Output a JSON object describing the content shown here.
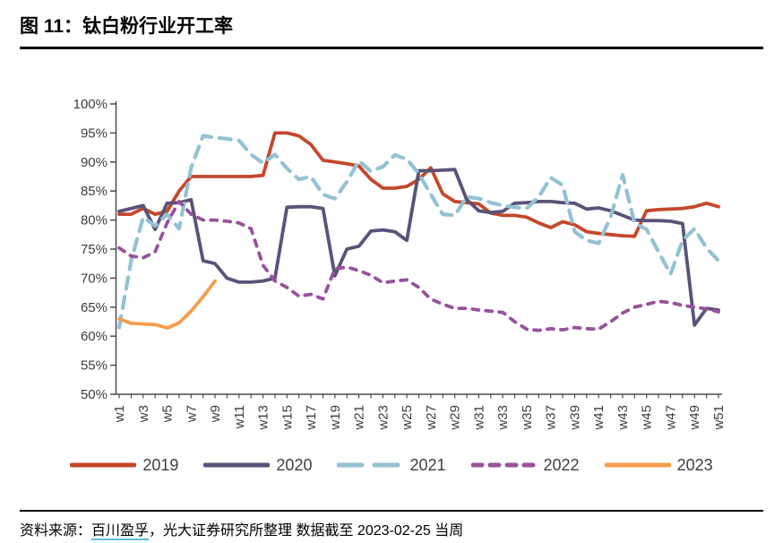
{
  "title": "图 11：钛白粉行业开工率",
  "source": {
    "prefix": "资料来源：",
    "link": "百川盈孚",
    "suffix": "，光大证券研究所整理 数据截至 2023-02-25 当周"
  },
  "chart_data": {
    "type": "line",
    "title": "钛白粉行业开工率",
    "xlabel": "",
    "ylabel": "",
    "x_unit": "week",
    "ylim": [
      50,
      100
    ],
    "y_tick_step": 5,
    "y_tick_labels": [
      "100%",
      "95%",
      "90%",
      "85%",
      "80%",
      "75%",
      "70%",
      "65%",
      "60%",
      "55%",
      "50%"
    ],
    "x_tick_labels": [
      "w1",
      "w3",
      "w5",
      "w7",
      "w9",
      "w11",
      "w13",
      "w15",
      "w17",
      "w19",
      "w21",
      "w23",
      "w25",
      "w27",
      "w29",
      "w31",
      "w33",
      "w35",
      "w37",
      "w39",
      "w41",
      "w43",
      "w45",
      "w47",
      "w49",
      "w51"
    ],
    "grid": false,
    "legend_position": "bottom",
    "axis_color": "#4d4d4d",
    "series": [
      {
        "name": "2019",
        "color": "#C5472B",
        "dash": "solid",
        "values": [
          81,
          81,
          82,
          81,
          81.5,
          85,
          87.5,
          87.5,
          87.5,
          87.5,
          87.5,
          87.5,
          87.7,
          95,
          95,
          94.5,
          93,
          90.3,
          90,
          89.7,
          89.3,
          87,
          85.5,
          85.5,
          85.8,
          87,
          89,
          84.5,
          83.2,
          83,
          82.8,
          81.2,
          80.8,
          80.8,
          80.5,
          79.5,
          78.7,
          79.7,
          79.2,
          78,
          77.7,
          77.5,
          77.3,
          77.2,
          81.6,
          81.8,
          81.9,
          82,
          82.3,
          82.9,
          82.3
        ]
      },
      {
        "name": "2020",
        "color": "#5A5378",
        "dash": "solid",
        "values": [
          81.5,
          82,
          82.5,
          78.4,
          82.9,
          83,
          83.5,
          73,
          72.5,
          70,
          69.3,
          69.3,
          69.5,
          70,
          82.2,
          82.3,
          82.3,
          82,
          70.4,
          75,
          75.5,
          78.1,
          78.3,
          78,
          76.5,
          88.5,
          88.5,
          88.6,
          88.7,
          83.5,
          81.6,
          81.3,
          81.5,
          82.9,
          83,
          83.2,
          83.2,
          83,
          82.9,
          81.9,
          82.1,
          81.6,
          80.8,
          80,
          79.9,
          79.9,
          79.8,
          79.4,
          61.9,
          64.8,
          64.5
        ]
      },
      {
        "name": "2021",
        "color": "#93C2D2",
        "dash": "dash",
        "values": [
          61.5,
          73,
          80.5,
          79,
          81,
          78.5,
          89,
          94.5,
          94.2,
          94,
          93.7,
          91.3,
          89.8,
          91.3,
          88.9,
          87,
          87.5,
          84.4,
          83.7,
          86.6,
          90.2,
          88.4,
          89.2,
          91.2,
          90.5,
          88,
          84.4,
          81,
          80.8,
          84,
          83.7,
          83,
          82.5,
          82.2,
          82,
          84,
          87.3,
          86,
          78,
          76.5,
          76,
          80.5,
          87.8,
          79.5,
          78.4,
          74.5,
          70.7,
          76.5,
          78.5,
          75.2,
          73
        ]
      },
      {
        "name": "2022",
        "color": "#98519C",
        "dash": "short-dash",
        "values": [
          75.2,
          73.8,
          73.5,
          74.5,
          79.5,
          83.2,
          81,
          80,
          80,
          79.8,
          79.5,
          78.5,
          72.2,
          69.5,
          68.4,
          66.9,
          67.2,
          66.4,
          71.6,
          71.9,
          71.3,
          70.5,
          69.2,
          69.5,
          69.7,
          68.4,
          66.4,
          65.5,
          64.8,
          64.8,
          64.5,
          64.3,
          64.1,
          62.5,
          61.2,
          61,
          61.3,
          61.1,
          61.5,
          61.3,
          61.2,
          62.5,
          64,
          65,
          65.5,
          66,
          65.8,
          65.3,
          65,
          64.7,
          64.2
        ]
      },
      {
        "name": "2023",
        "color": "#F79C4B",
        "dash": "solid",
        "values": [
          63,
          62.2,
          62.1,
          62,
          61.4,
          62.3,
          64.3,
          66.8,
          69.5
        ]
      }
    ]
  }
}
